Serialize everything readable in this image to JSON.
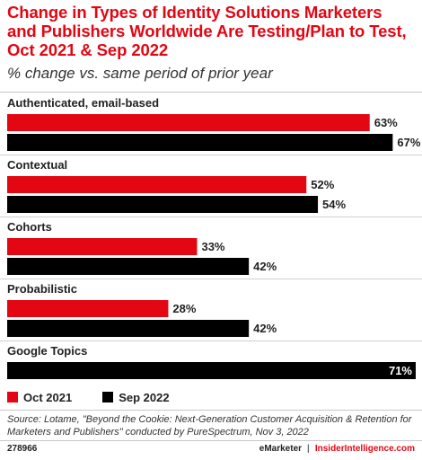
{
  "title": "Change in Types of Identity Solutions Marketers and Publishers Worldwide Are Testing/Plan to Test, Oct 2021 & Sep 2022",
  "subtitle": "% change vs. same period of prior year",
  "chart_data": {
    "type": "bar",
    "orientation": "horizontal",
    "categories": [
      "Authenticated, email-based",
      "Contextual",
      "Cohorts",
      "Probabilistic",
      "Google Topics"
    ],
    "series": [
      {
        "name": "Oct 2021",
        "color": "#e30613",
        "values": [
          63,
          52,
          33,
          28,
          null
        ],
        "labels": [
          "63%",
          "52%",
          "33%",
          "28%",
          ""
        ]
      },
      {
        "name": "Sep 2022",
        "color": "#000000",
        "values": [
          67,
          54,
          42,
          42,
          71
        ],
        "labels": [
          "67%",
          "54%",
          "42%",
          "42%",
          "71%"
        ]
      }
    ],
    "xlim": [
      0,
      71
    ],
    "legend_position": "bottom-left",
    "grid": false
  },
  "source": "Source: Lotame, \"Beyond the Cookie: Next-Generation Customer Acquisition & Retention for Marketers and Publishers\" conducted by PureSpectrum, Nov 3, 2022",
  "footer": {
    "id": "278966",
    "brand1": "eMarketer",
    "separator": "|",
    "brand2": "InsiderIntelligence.com"
  }
}
